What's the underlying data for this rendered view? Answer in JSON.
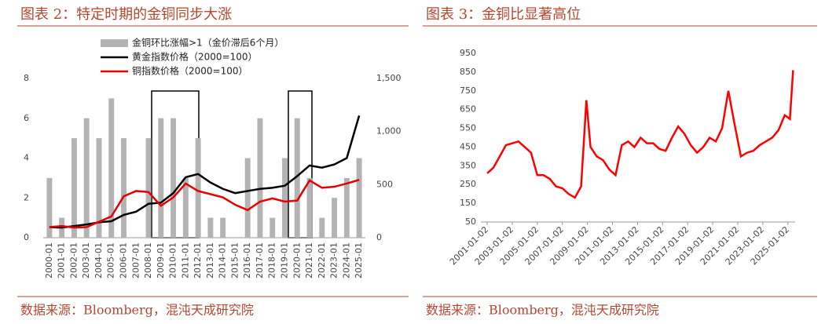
{
  "chart_data": [
    {
      "type": "bar",
      "title": "图表 2：特定时期的金铜同步大涨",
      "source": "数据来源：Bloomberg，混沌天成研究院",
      "categories": [
        "2000-01",
        "2001-01",
        "2002-01",
        "2003-01",
        "2004-01",
        "2005-01",
        "2006-01",
        "2007-01",
        "2008-01",
        "2009-01",
        "2010-01",
        "2011-01",
        "2012-01",
        "2013-01",
        "2014-01",
        "2015-01",
        "2016-01",
        "2017-01",
        "2018-01",
        "2019-01",
        "2020-01",
        "2021-01",
        "2022-01",
        "2023-01",
        "2024-01",
        "2025-01"
      ],
      "series": [
        {
          "name": "金铜环比涨幅>1（金价滞后6个月）",
          "color": "#b3b3b3",
          "type": "bar",
          "values": [
            3,
            1,
            5,
            6,
            5,
            7,
            5,
            0,
            5,
            6,
            6,
            3,
            5,
            1,
            1,
            0,
            4,
            6,
            1,
            4,
            6,
            3,
            1,
            2,
            3,
            4
          ]
        },
        {
          "name": "黄金指数价格（2000=100）",
          "color": "#000000",
          "type": "line",
          "axis": "y2",
          "values": [
            100,
            95,
            110,
            125,
            145,
            155,
            215,
            245,
            320,
            330,
            420,
            570,
            600,
            520,
            460,
            420,
            440,
            460,
            470,
            490,
            580,
            680,
            660,
            690,
            750,
            1150
          ]
        },
        {
          "name": "铜指数价格（2000=100）",
          "color": "#e60000",
          "type": "line",
          "axis": "y2",
          "values": [
            100,
            110,
            95,
            100,
            150,
            200,
            390,
            440,
            430,
            300,
            380,
            510,
            440,
            410,
            380,
            310,
            260,
            340,
            370,
            340,
            350,
            540,
            470,
            480,
            510,
            545
          ]
        }
      ],
      "ylim": [
        0,
        8
      ],
      "yticks": [
        0,
        2,
        4,
        6,
        8
      ],
      "y2lim": [
        0,
        1500
      ],
      "y2ticks": [
        0,
        500,
        {
          "value": 1000,
          "label": "1,000"
        },
        {
          "value": 1500,
          "label": "1,500"
        }
      ]
    },
    {
      "type": "line",
      "title": "图表 3：金铜比显著高位",
      "source": "数据来源：Bloomberg，混沌天成研究院",
      "x": [
        "2001-01-02",
        "2001-07-02",
        "2002-01-02",
        "2002-07-02",
        "2003-01-02",
        "2003-07-02",
        "2004-01-02",
        "2004-07-02",
        "2005-01-02",
        "2005-07-02",
        "2006-01-02",
        "2006-07-02",
        "2007-01-02",
        "2007-07-02",
        "2008-01-02",
        "2008-07-02",
        "2008-12-02",
        "2009-04-02",
        "2009-10-02",
        "2010-04-02",
        "2010-10-02",
        "2011-04-02",
        "2011-10-02",
        "2012-04-02",
        "2012-10-02",
        "2013-04-02",
        "2013-10-02",
        "2014-04-02",
        "2014-10-02",
        "2015-04-02",
        "2015-10-02",
        "2016-04-02",
        "2016-10-02",
        "2017-04-02",
        "2017-10-02",
        "2018-04-02",
        "2018-10-02",
        "2019-04-02",
        "2019-10-02",
        "2020-04-02",
        "2020-10-02",
        "2021-04-02",
        "2021-10-02",
        "2022-04-02",
        "2022-10-02",
        "2023-04-02",
        "2023-10-02",
        "2024-04-02",
        "2024-10-02",
        "2025-03-02",
        "2025-06-02"
      ],
      "series": [
        {
          "name": "金铜比",
          "color": "#ff0000",
          "values": [
            310,
            340,
            400,
            460,
            470,
            480,
            450,
            420,
            300,
            300,
            280,
            240,
            230,
            200,
            180,
            240,
            700,
            450,
            400,
            380,
            330,
            300,
            460,
            480,
            450,
            500,
            470,
            470,
            440,
            430,
            500,
            560,
            520,
            460,
            420,
            450,
            500,
            480,
            550,
            750,
            570,
            400,
            420,
            430,
            460,
            480,
            500,
            540,
            620,
            600,
            860
          ]
        }
      ],
      "xlim": [
        "2000-07-01",
        "2025-08-01"
      ],
      "xticks": [
        "2001-01-02",
        "2003-01-02",
        "2005-01-02",
        "2007-01-02",
        "2009-01-02",
        "2011-01-02",
        "2013-01-02",
        "2015-01-02",
        "2017-01-02",
        "2019-01-02",
        "2021-01-02",
        "2023-01-02",
        "2025-01-02"
      ],
      "ylim": [
        50,
        950
      ],
      "yticks": [
        50,
        150,
        250,
        350,
        450,
        550,
        650,
        750,
        850,
        950
      ]
    }
  ]
}
